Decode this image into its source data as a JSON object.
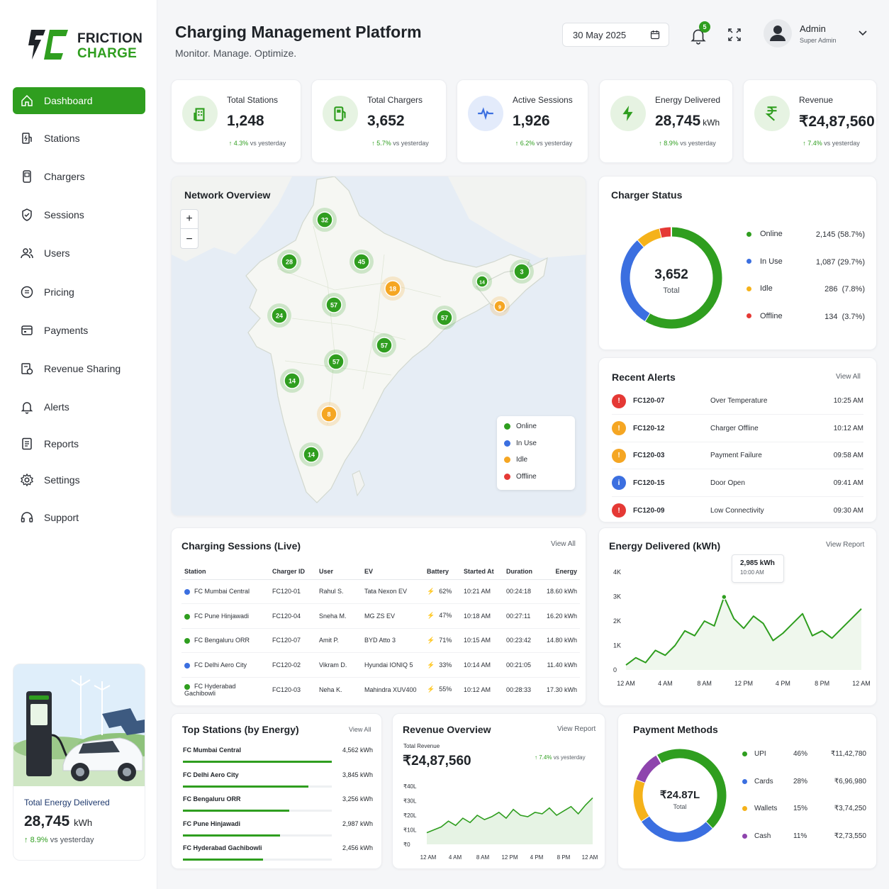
{
  "brand": {
    "line1": "FRICTION",
    "line2": "CHARGE"
  },
  "header": {
    "title": "Charging Management Platform",
    "subtitle": "Monitor. Manage. Optimize.",
    "date": "30 May 2025",
    "notifications": "5",
    "user_name": "Admin",
    "user_role": "Super Admin"
  },
  "nav": [
    {
      "label": "Dashboard",
      "icon": "home-icon",
      "active": true
    },
    {
      "label": "Stations",
      "icon": "station-icon"
    },
    {
      "label": "Chargers",
      "icon": "charger-icon"
    },
    {
      "label": "Sessions",
      "icon": "shield-icon"
    },
    {
      "label": "Users",
      "icon": "users-icon"
    },
    {
      "label": "Pricing",
      "icon": "pricing-icon"
    },
    {
      "label": "Payments",
      "icon": "payments-icon"
    },
    {
      "label": "Revenue Sharing",
      "icon": "revenue-sharing-icon"
    },
    {
      "label": "Alerts",
      "icon": "bell-icon"
    },
    {
      "label": "Reports",
      "icon": "reports-icon"
    },
    {
      "label": "Settings",
      "icon": "gear-icon"
    },
    {
      "label": "Support",
      "icon": "headset-icon"
    }
  ],
  "promo": {
    "label": "Total Energy Delivered",
    "value": "28,745",
    "unit": "kWh",
    "delta": "8.9%",
    "delta_text": "vs yesterday"
  },
  "kpis": [
    {
      "label": "Total Stations",
      "value": "1,248",
      "unit": "",
      "delta": "4.3%",
      "delta_text": "vs yesterday",
      "icon": "building-icon",
      "color": "#2f9e1f"
    },
    {
      "label": "Total Chargers",
      "value": "3,652",
      "unit": "",
      "delta": "5.7%",
      "delta_text": "vs yesterday",
      "icon": "fuel-pump-icon",
      "color": "#2f9e1f"
    },
    {
      "label": "Active Sessions",
      "value": "1,926",
      "unit": "",
      "delta": "6.2%",
      "delta_text": "vs yesterday",
      "icon": "pulse-icon",
      "color": "#3b6fe0"
    },
    {
      "label": "Energy Delivered",
      "value": "28,745",
      "unit": "kWh",
      "delta": "8.9%",
      "delta_text": "vs yesterday",
      "icon": "bolt-icon",
      "color": "#2f9e1f"
    },
    {
      "label": "Revenue",
      "value": "₹24,87,560",
      "unit": "",
      "delta": "7.4%",
      "delta_text": "vs yesterday",
      "icon": "rupee-icon",
      "color": "#2f9e1f"
    }
  ],
  "network": {
    "title": "Network Overview",
    "zoom_in": "+",
    "zoom_out": "−",
    "markers": [
      {
        "label": "32",
        "status": "online"
      },
      {
        "label": "28",
        "status": "online"
      },
      {
        "label": "45",
        "status": "online"
      },
      {
        "label": "18",
        "status": "idle"
      },
      {
        "label": "14",
        "status": "online"
      },
      {
        "label": "3",
        "status": "online"
      },
      {
        "label": "9",
        "status": "idle"
      },
      {
        "label": "24",
        "status": "online"
      },
      {
        "label": "57",
        "status": "online"
      },
      {
        "label": "57",
        "status": "online"
      },
      {
        "label": "57",
        "status": "online"
      },
      {
        "label": "57",
        "status": "online"
      },
      {
        "label": "14",
        "status": "online"
      },
      {
        "label": "8",
        "status": "idle"
      },
      {
        "label": "14",
        "status": "online"
      }
    ],
    "legend": [
      {
        "label": "Online",
        "color": "#2f9e1f"
      },
      {
        "label": "In Use",
        "color": "#3b6fe0"
      },
      {
        "label": "Idle",
        "color": "#f5a623"
      },
      {
        "label": "Offline",
        "color": "#e53935"
      }
    ]
  },
  "charger_status": {
    "title": "Charger Status",
    "total": "3,652",
    "total_label": "Total",
    "items": [
      {
        "label": "Online",
        "value": "2,145 (58.7%)",
        "pct": 58.7,
        "color": "#2f9e1f"
      },
      {
        "label": "In Use",
        "value": "1,087 (29.7%)",
        "pct": 29.7,
        "color": "#3b6fe0"
      },
      {
        "label": "Idle",
        "value": "286  (7.8%)",
        "pct": 7.8,
        "color": "#f5b21a"
      },
      {
        "label": "Offline",
        "value": "134  (3.7%)",
        "pct": 3.7,
        "color": "#e53935"
      }
    ]
  },
  "alerts": {
    "title": "Recent Alerts",
    "view_all": "View All",
    "items": [
      {
        "id": "FC120-07",
        "text": "Over Temperature",
        "time": "10:25 AM",
        "color": "#e53935",
        "glyph": "▲"
      },
      {
        "id": "FC120-12",
        "text": "Charger Offline",
        "time": "10:12 AM",
        "color": "#f5a623",
        "glyph": "▲"
      },
      {
        "id": "FC120-03",
        "text": "Payment Failure",
        "time": "09:58 AM",
        "color": "#f5a623",
        "glyph": "▲"
      },
      {
        "id": "FC120-15",
        "text": "Door Open",
        "time": "09:41 AM",
        "color": "#3b6fe0",
        "glyph": "i"
      },
      {
        "id": "FC120-09",
        "text": "Low Connectivity",
        "time": "09:30 AM",
        "color": "#e53935",
        "glyph": "▲"
      }
    ]
  },
  "sessions": {
    "title": "Charging Sessions (Live)",
    "view_all": "View All",
    "columns": [
      "Station",
      "Charger ID",
      "User",
      "EV",
      "Battery",
      "Started At",
      "Duration",
      "Energy"
    ],
    "rows": [
      {
        "station": "FC Mumbai Central",
        "dot": "#3b6fe0",
        "charger": "FC120-01",
        "user": "Rahul S.",
        "ev": "Tata Nexon EV",
        "battery": "62%",
        "started": "10:21 AM",
        "duration": "00:24:18",
        "energy": "18.60 kWh"
      },
      {
        "station": "FC Pune Hinjawadi",
        "dot": "#2f9e1f",
        "charger": "FC120-04",
        "user": "Sneha M.",
        "ev": "MG ZS EV",
        "battery": "47%",
        "started": "10:18 AM",
        "duration": "00:27:11",
        "energy": "16.20 kWh"
      },
      {
        "station": "FC Bengaluru ORR",
        "dot": "#2f9e1f",
        "charger": "FC120-07",
        "user": "Amit P.",
        "ev": "BYD Atto 3",
        "battery": "71%",
        "started": "10:15 AM",
        "duration": "00:23:42",
        "energy": "14.80 kWh"
      },
      {
        "station": "FC Delhi Aero City",
        "dot": "#3b6fe0",
        "charger": "FC120-02",
        "user": "Vikram D.",
        "ev": "Hyundai IONIQ 5",
        "battery": "33%",
        "started": "10:14 AM",
        "duration": "00:21:05",
        "energy": "11.40 kWh"
      },
      {
        "station": "FC Hyderabad Gachibowli",
        "dot": "#2f9e1f",
        "charger": "FC120-03",
        "user": "Neha K.",
        "ev": "Mahindra XUV400",
        "battery": "55%",
        "started": "10:12 AM",
        "duration": "00:28:33",
        "energy": "17.30 kWh"
      }
    ]
  },
  "energy_chart": {
    "title": "Energy Delivered (kWh)",
    "view_report": "View Report",
    "tooltip_value": "2,985 kWh",
    "tooltip_time": "10:00 AM"
  },
  "top_stations": {
    "title": "Top Stations (by Energy)",
    "view_all": "View All",
    "items": [
      {
        "name": "FC Mumbai Central",
        "value": "4,562 kWh",
        "kwh": 4562
      },
      {
        "name": "FC Delhi Aero City",
        "value": "3,845 kWh",
        "kwh": 3845
      },
      {
        "name": "FC Bengaluru ORR",
        "value": "3,256 kWh",
        "kwh": 3256
      },
      {
        "name": "FC Pune Hinjawadi",
        "value": "2,987 kWh",
        "kwh": 2987
      },
      {
        "name": "FC Hyderabad Gachibowli",
        "value": "2,456 kWh",
        "kwh": 2456
      }
    ]
  },
  "revenue": {
    "title": "Revenue Overview",
    "view_report": "View Report",
    "total_label": "Total Revenue",
    "total": "₹24,87,560",
    "delta": "7.4%",
    "delta_text": "vs yesterday"
  },
  "payments": {
    "title": "Payment Methods",
    "total": "₹24.87L",
    "total_label": "Total",
    "items": [
      {
        "label": "UPI",
        "pct_text": "46%",
        "pct": 46,
        "value": "₹11,42,780",
        "color": "#2f9e1f"
      },
      {
        "label": "Cards",
        "pct_text": "28%",
        "pct": 28,
        "value": "₹6,96,980",
        "color": "#3b6fe0"
      },
      {
        "label": "Wallets",
        "pct_text": "15%",
        "pct": 15,
        "value": "₹3,74,250",
        "color": "#f5b21a"
      },
      {
        "label": "Cash",
        "pct_text": "11%",
        "pct": 11,
        "value": "₹2,73,550",
        "color": "#8e44ad"
      }
    ]
  },
  "chart_data": [
    {
      "type": "line",
      "title": "Energy Delivered (kWh)",
      "x_ticks": [
        "12 AM",
        "4 AM",
        "8 AM",
        "12 PM",
        "4 PM",
        "8 PM",
        "12 AM"
      ],
      "y_ticks": [
        "0",
        "1K",
        "2K",
        "3K",
        "4K"
      ],
      "ylim": [
        0,
        4000
      ],
      "x": [
        0,
        1,
        2,
        3,
        4,
        5,
        6,
        7,
        8,
        9,
        10,
        11,
        12,
        13,
        14,
        15,
        16,
        17,
        18,
        19,
        20,
        21,
        22,
        23,
        24
      ],
      "values": [
        200,
        500,
        300,
        800,
        600,
        1000,
        1600,
        1400,
        2000,
        1800,
        2985,
        2100,
        1700,
        2200,
        1900,
        1200,
        1500,
        1900,
        2300,
        1400,
        1600,
        1300,
        1700,
        2100,
        2500
      ]
    },
    {
      "type": "area",
      "title": "Revenue Overview",
      "x_ticks": [
        "12 AM",
        "4 AM",
        "8 AM",
        "12 PM",
        "4 PM",
        "8 PM",
        "12 AM"
      ],
      "y_ticks": [
        "₹0",
        "₹10L",
        "₹20L",
        "₹30L",
        "₹40L"
      ],
      "ylim": [
        0,
        40
      ],
      "values": [
        8,
        10,
        12,
        16,
        13,
        18,
        15,
        20,
        17,
        19,
        22,
        18,
        24,
        20,
        19,
        22,
        21,
        25,
        20,
        23,
        26,
        21,
        27,
        32
      ]
    },
    {
      "type": "pie",
      "title": "Charger Status",
      "categories": [
        "Online",
        "In Use",
        "Idle",
        "Offline"
      ],
      "values": [
        2145,
        1087,
        286,
        134
      ]
    },
    {
      "type": "pie",
      "title": "Payment Methods",
      "categories": [
        "UPI",
        "Cards",
        "Wallets",
        "Cash"
      ],
      "values": [
        46,
        28,
        15,
        11
      ]
    },
    {
      "type": "bar",
      "title": "Top Stations (by Energy)",
      "categories": [
        "FC Mumbai Central",
        "FC Delhi Aero City",
        "FC Bengaluru ORR",
        "FC Pune Hinjawadi",
        "FC Hyderabad Gachibowli"
      ],
      "values": [
        4562,
        3845,
        3256,
        2987,
        2456
      ]
    }
  ]
}
